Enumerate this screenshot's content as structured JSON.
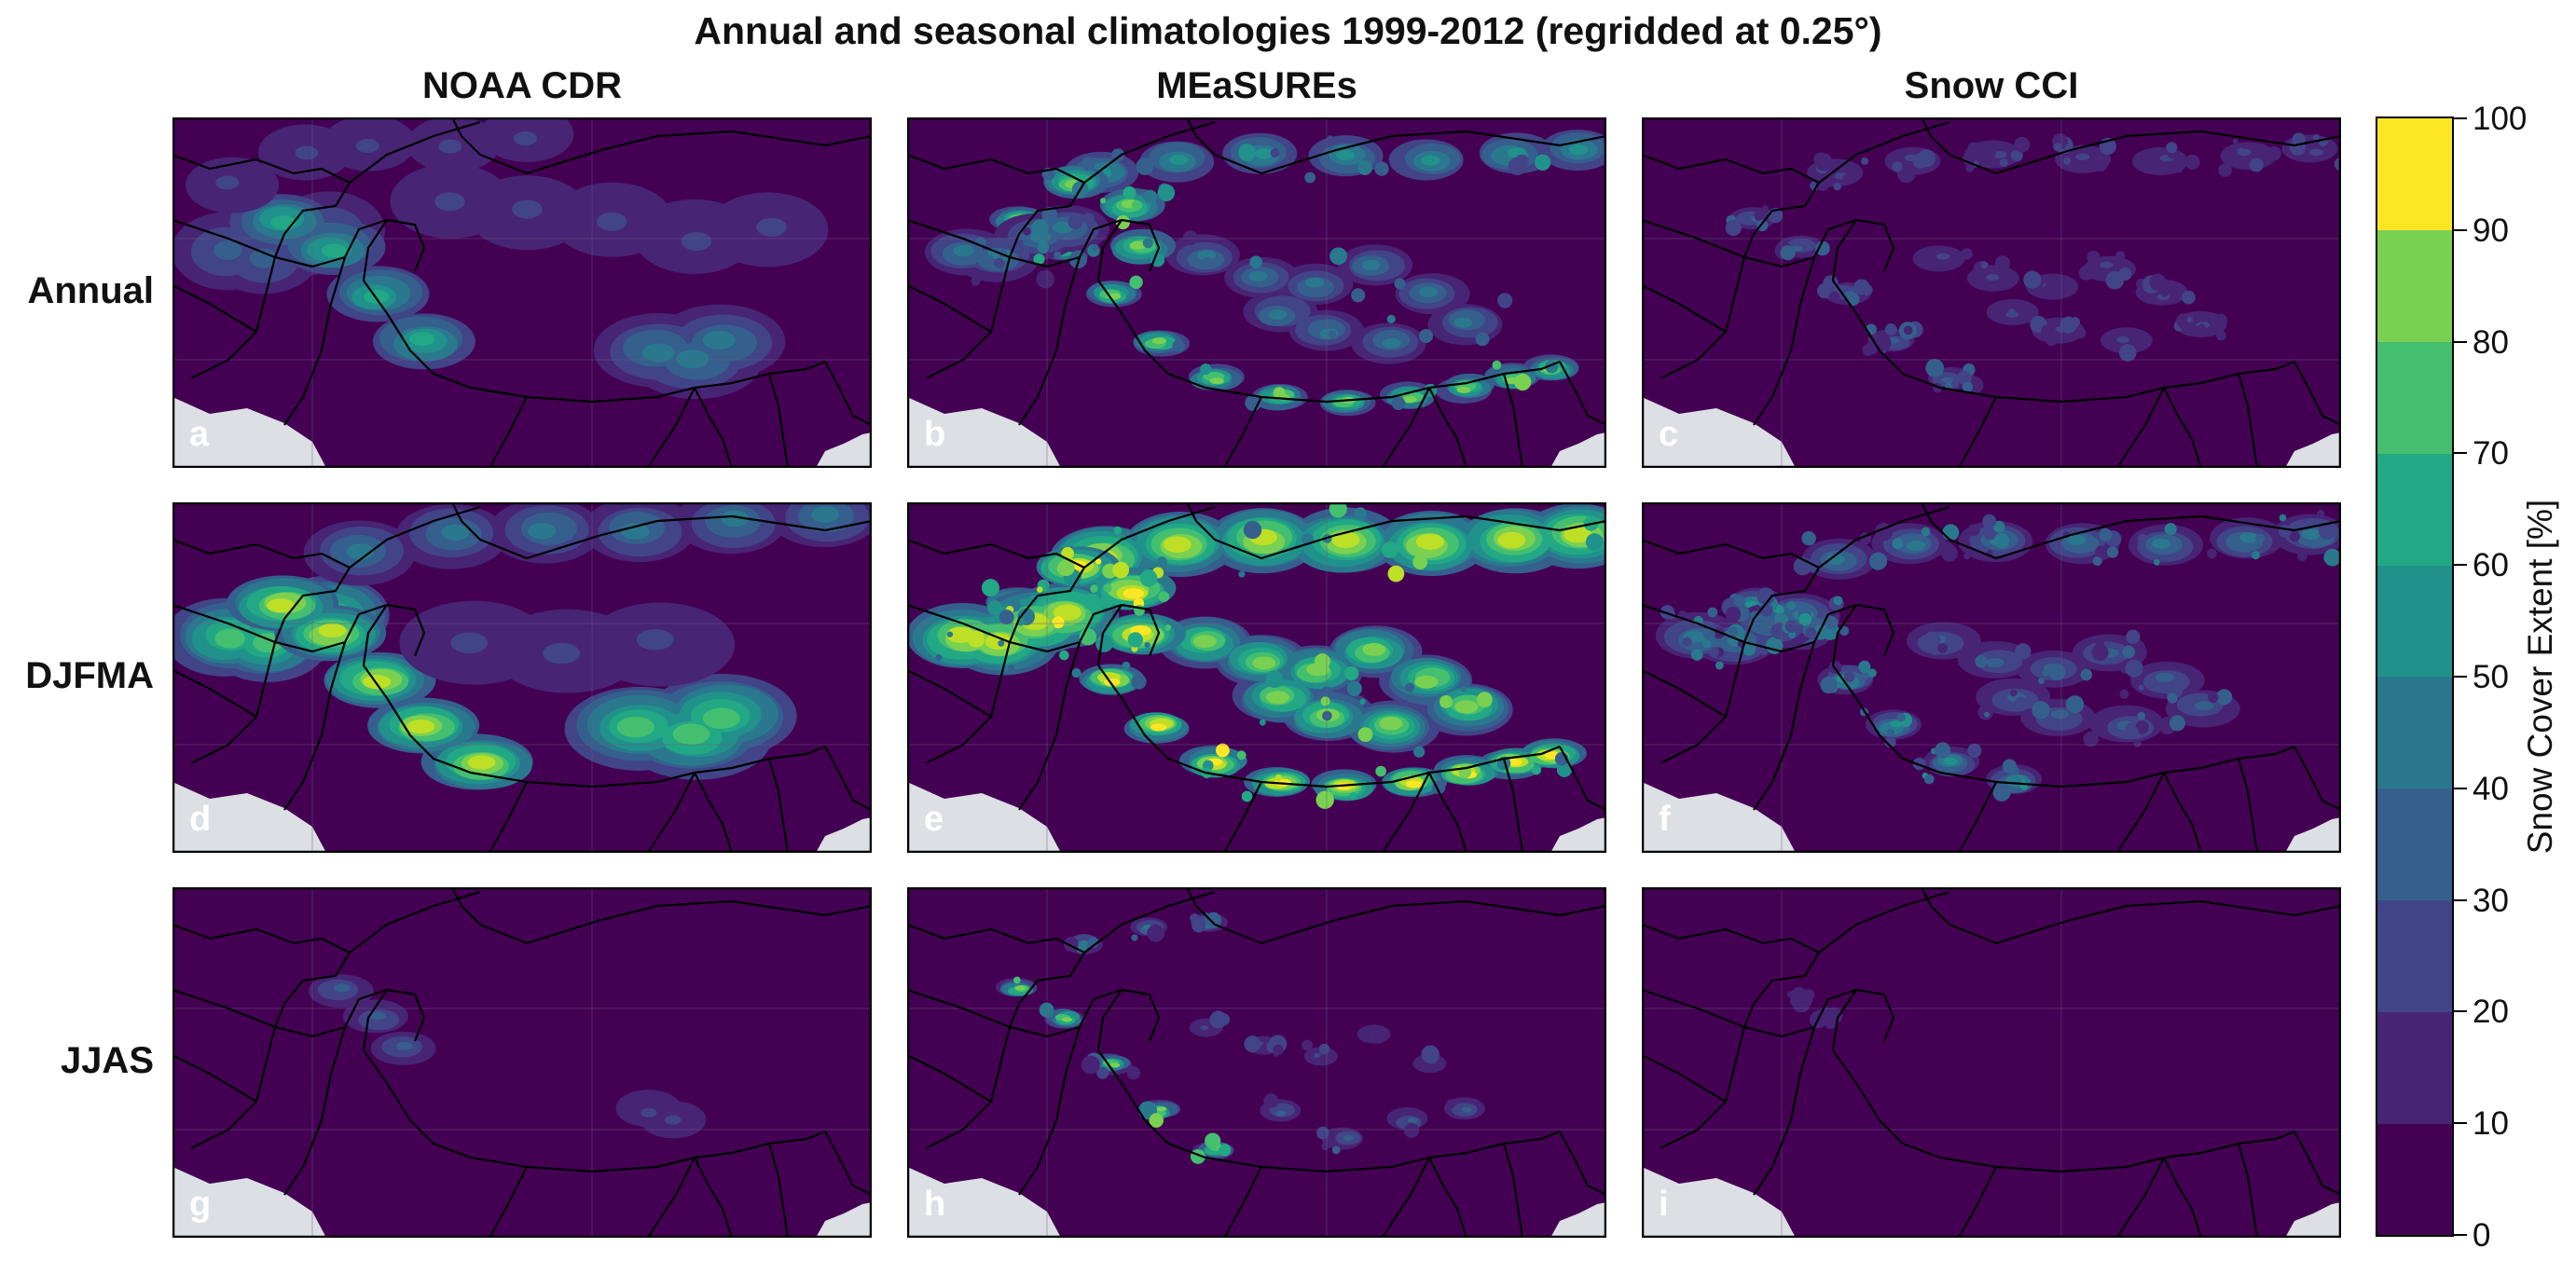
{
  "figure": {
    "title": "Annual and seasonal climatologies 1999-2012 (regridded at 0.25°)",
    "columns": [
      "NOAA CDR",
      "MEaSUREs",
      "Snow CCI"
    ],
    "rows": [
      "Annual",
      "DJFMA",
      "JJAS"
    ],
    "panels": [
      {
        "letter": "a",
        "dataset": "NOAA CDR",
        "season": "Annual"
      },
      {
        "letter": "b",
        "dataset": "MEaSUREs",
        "season": "Annual"
      },
      {
        "letter": "c",
        "dataset": "Snow CCI",
        "season": "Annual"
      },
      {
        "letter": "d",
        "dataset": "NOAA CDR",
        "season": "DJFMA"
      },
      {
        "letter": "e",
        "dataset": "MEaSUREs",
        "season": "DJFMA"
      },
      {
        "letter": "f",
        "dataset": "Snow CCI",
        "season": "DJFMA"
      },
      {
        "letter": "g",
        "dataset": "NOAA CDR",
        "season": "JJAS"
      },
      {
        "letter": "h",
        "dataset": "MEaSUREs",
        "season": "JJAS"
      },
      {
        "letter": "i",
        "dataset": "Snow CCI",
        "season": "JJAS"
      }
    ]
  },
  "colorbar": {
    "label": "Snow Cover Extent [%]",
    "ticks": [
      "0",
      "10",
      "20",
      "30",
      "40",
      "50",
      "60",
      "70",
      "80",
      "90",
      "100"
    ],
    "colors": [
      "#440154",
      "#482475",
      "#414487",
      "#355f8d",
      "#2a788e",
      "#21918c",
      "#22a884",
      "#44bf70",
      "#7ad151",
      "#bddf26",
      "#fde725"
    ]
  },
  "style": {
    "ocean": "#dcdfe3",
    "land_low": "#440154"
  }
}
